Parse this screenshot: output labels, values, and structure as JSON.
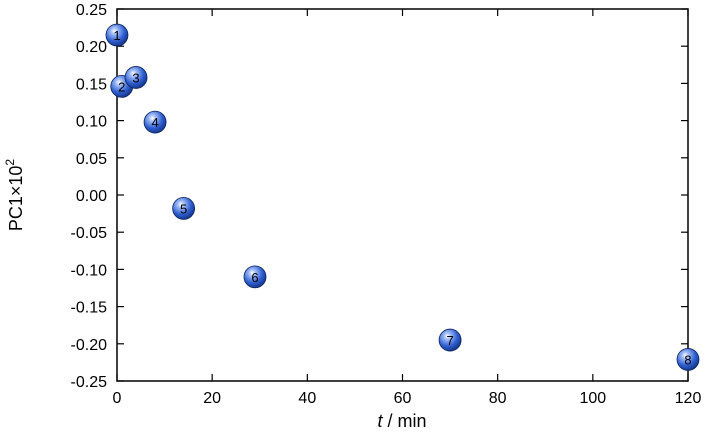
{
  "chart_data": {
    "type": "scatter",
    "xlabel": {
      "var": "t",
      "unit": " / min"
    },
    "ylabel": {
      "base": "PC1×10",
      "exp": "2"
    },
    "xlim": [
      0,
      120
    ],
    "ylim": [
      -0.25,
      0.25
    ],
    "xticks": [
      "0",
      "20",
      "40",
      "60",
      "80",
      "100",
      "120"
    ],
    "yticks": [
      "0.25",
      "0.20",
      "0.15",
      "0.10",
      "0.05",
      "0.00",
      "-0.05",
      "-0.10",
      "-0.15",
      "-0.20",
      "-0.25"
    ],
    "grid": false,
    "marker_color": "#2f5fd0",
    "points": [
      {
        "label": "1",
        "x": 0,
        "y": 0.215
      },
      {
        "label": "2",
        "x": 1,
        "y": 0.146
      },
      {
        "label": "3",
        "x": 4,
        "y": 0.158
      },
      {
        "label": "4",
        "x": 8,
        "y": 0.098
      },
      {
        "label": "5",
        "x": 14,
        "y": -0.018
      },
      {
        "label": "6",
        "x": 29,
        "y": -0.11
      },
      {
        "label": "7",
        "x": 70,
        "y": -0.195
      },
      {
        "label": "8",
        "x": 120,
        "y": -0.221
      }
    ]
  }
}
